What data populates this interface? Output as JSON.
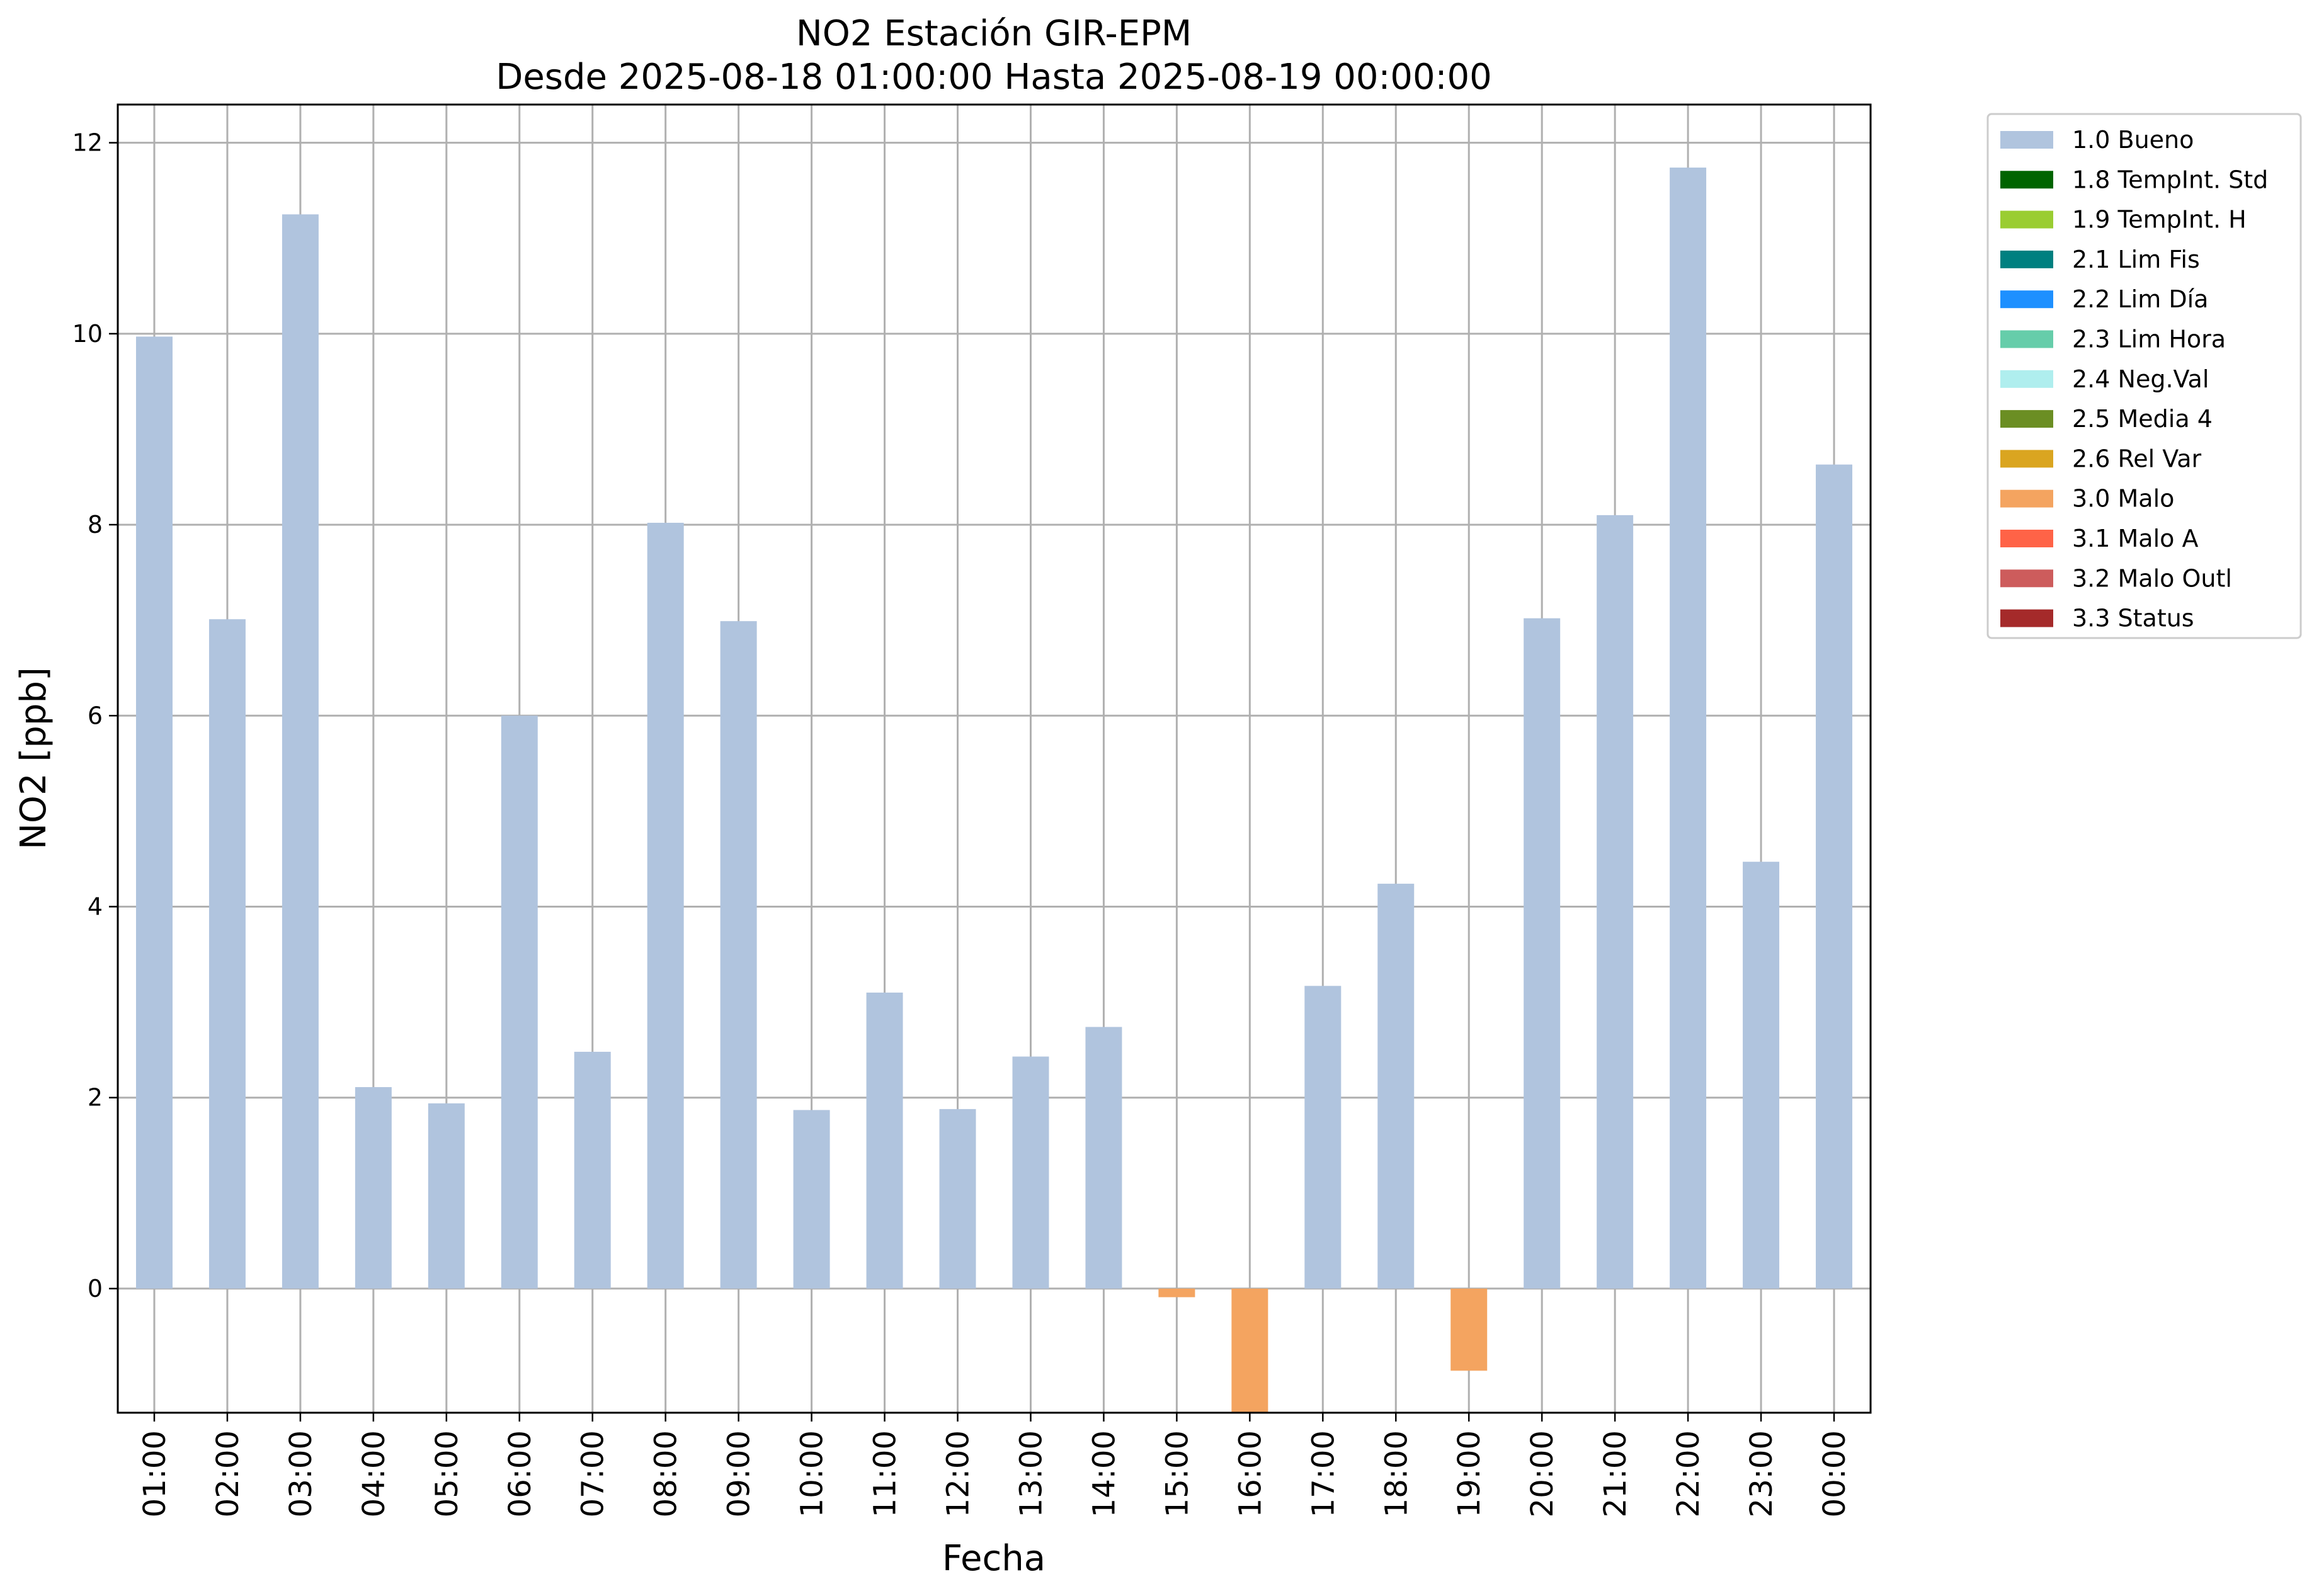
{
  "chart_data": {
    "type": "bar",
    "title": "NO2 Estación GIR-EPM",
    "subtitle": "Desde 2025-08-18 01:00:00 Hasta 2025-08-19 00:00:00",
    "xlabel": "Fecha",
    "ylabel": "NO2 [ppb]",
    "ylim": [
      -1.3,
      12.4
    ],
    "yticks": [
      0,
      2,
      4,
      6,
      8,
      10,
      12
    ],
    "grid": true,
    "legend_position": "outside-top-right",
    "categories": [
      "01:00",
      "02:00",
      "03:00",
      "04:00",
      "05:00",
      "06:00",
      "07:00",
      "08:00",
      "09:00",
      "10:00",
      "11:00",
      "12:00",
      "13:00",
      "14:00",
      "15:00",
      "16:00",
      "17:00",
      "18:00",
      "19:00",
      "20:00",
      "21:00",
      "22:00",
      "23:00",
      "00:00"
    ],
    "values": [
      9.97,
      7.01,
      11.25,
      2.11,
      1.94,
      6.0,
      2.48,
      8.02,
      6.99,
      1.87,
      3.1,
      1.88,
      2.43,
      2.74,
      -0.09,
      -1.3,
      3.17,
      4.24,
      -0.86,
      7.02,
      8.1,
      11.74,
      4.47,
      8.63
    ],
    "quality_flags": [
      "1.0 Bueno",
      "1.0 Bueno",
      "1.0 Bueno",
      "1.0 Bueno",
      "1.0 Bueno",
      "1.0 Bueno",
      "1.0 Bueno",
      "1.0 Bueno",
      "1.0 Bueno",
      "1.0 Bueno",
      "1.0 Bueno",
      "1.0 Bueno",
      "1.0 Bueno",
      "1.0 Bueno",
      "3.0 Malo",
      "3.0 Malo",
      "1.0 Bueno",
      "1.0 Bueno",
      "3.0 Malo",
      "1.0 Bueno",
      "1.0 Bueno",
      "1.0 Bueno",
      "1.0 Bueno",
      "1.0 Bueno"
    ],
    "legend": [
      {
        "label": "1.0 Bueno",
        "color": "#b0c4de"
      },
      {
        "label": "1.8 TempInt. Std",
        "color": "#006400"
      },
      {
        "label": "1.9 TempInt. H",
        "color": "#9acd32"
      },
      {
        "label": "2.1 Lim Fis",
        "color": "#008080"
      },
      {
        "label": "2.2 Lim Día",
        "color": "#1e90ff"
      },
      {
        "label": "2.3 Lim Hora",
        "color": "#66cdaa"
      },
      {
        "label": "2.4 Neg.Val",
        "color": "#afeeee"
      },
      {
        "label": "2.5 Media 4",
        "color": "#6b8e23"
      },
      {
        "label": "2.6 Rel Var",
        "color": "#daa520"
      },
      {
        "label": "3.0 Malo",
        "color": "#f4a460"
      },
      {
        "label": "3.1 Malo A",
        "color": "#ff6347"
      },
      {
        "label": "3.2 Malo Outl",
        "color": "#cd5c5c"
      },
      {
        "label": "3.3 Status",
        "color": "#a52a2a"
      }
    ]
  }
}
